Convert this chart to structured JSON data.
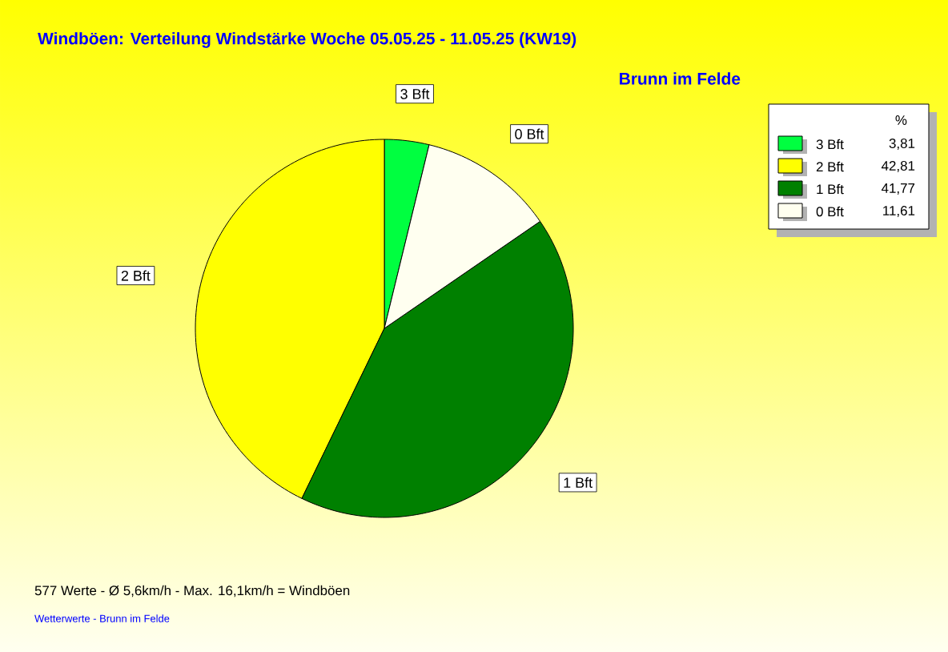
{
  "chart_data": {
    "type": "pie",
    "title": "Windböen: Verteilung Windstärke  Woche 05.05.25 - 11.05.25 (KW19)",
    "subtitle": "Brunn im Felde",
    "legend_title": "%",
    "categories": [
      "3 Bft",
      "2 Bft",
      "1 Bft",
      "0 Bft"
    ],
    "values": [
      3.81,
      42.81,
      41.77,
      11.61
    ],
    "value_labels": [
      "3,81",
      "42,81",
      "41,77",
      "11,61"
    ],
    "colors": [
      "#00ff40",
      "#ffff00",
      "#008000",
      "#fffff0"
    ],
    "legend": "top right",
    "annotations": [
      "577 Werte   -   Ø 5,6km/h  -  Max. 16,1km/h = Windböen",
      "Wetterwerte - Brunn im Felde"
    ]
  }
}
